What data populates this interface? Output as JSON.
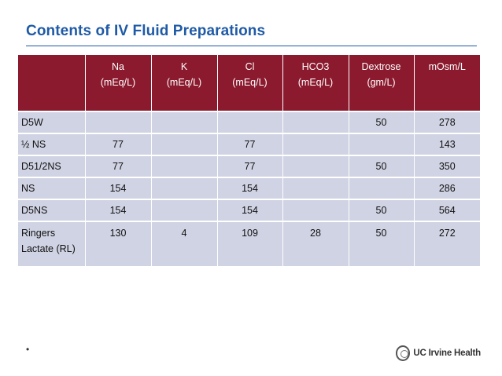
{
  "title": "Contents of IV Fluid Preparations",
  "headers": [
    {
      "line1": "",
      "line2": ""
    },
    {
      "line1": "Na",
      "line2": "(mEq/L)"
    },
    {
      "line1": "K",
      "line2": "(mEq/L)"
    },
    {
      "line1": "Cl",
      "line2": "(mEq/L)"
    },
    {
      "line1": "HCO3",
      "line2": "(mEq/L)"
    },
    {
      "line1": "Dextrose",
      "line2": "(gm/L)"
    },
    {
      "line1": "mOsm/L",
      "line2": ""
    }
  ],
  "rows": [
    [
      "D5W",
      "",
      "",
      "",
      "",
      "50",
      "278"
    ],
    [
      "½ NS",
      "77",
      "",
      "77",
      "",
      "",
      "143"
    ],
    [
      "D51/2NS",
      "77",
      "",
      "77",
      "",
      "50",
      "350"
    ],
    [
      "NS",
      "154",
      "",
      "154",
      "",
      "",
      "286"
    ],
    [
      "D5NS",
      "154",
      "",
      "154",
      "",
      "50",
      "564"
    ],
    [
      "Ringers Lactate (RL)",
      "130",
      "4",
      "109",
      "28",
      "50",
      "272"
    ]
  ],
  "footer": {
    "bullet": "•",
    "logo_text": "UC Irvine Health",
    "logo_icon": "uci-seal-icon"
  },
  "colors": {
    "title": "#1f5aa6",
    "header_bg": "#8b1a2e",
    "row_bg": "#d0d3e3"
  }
}
